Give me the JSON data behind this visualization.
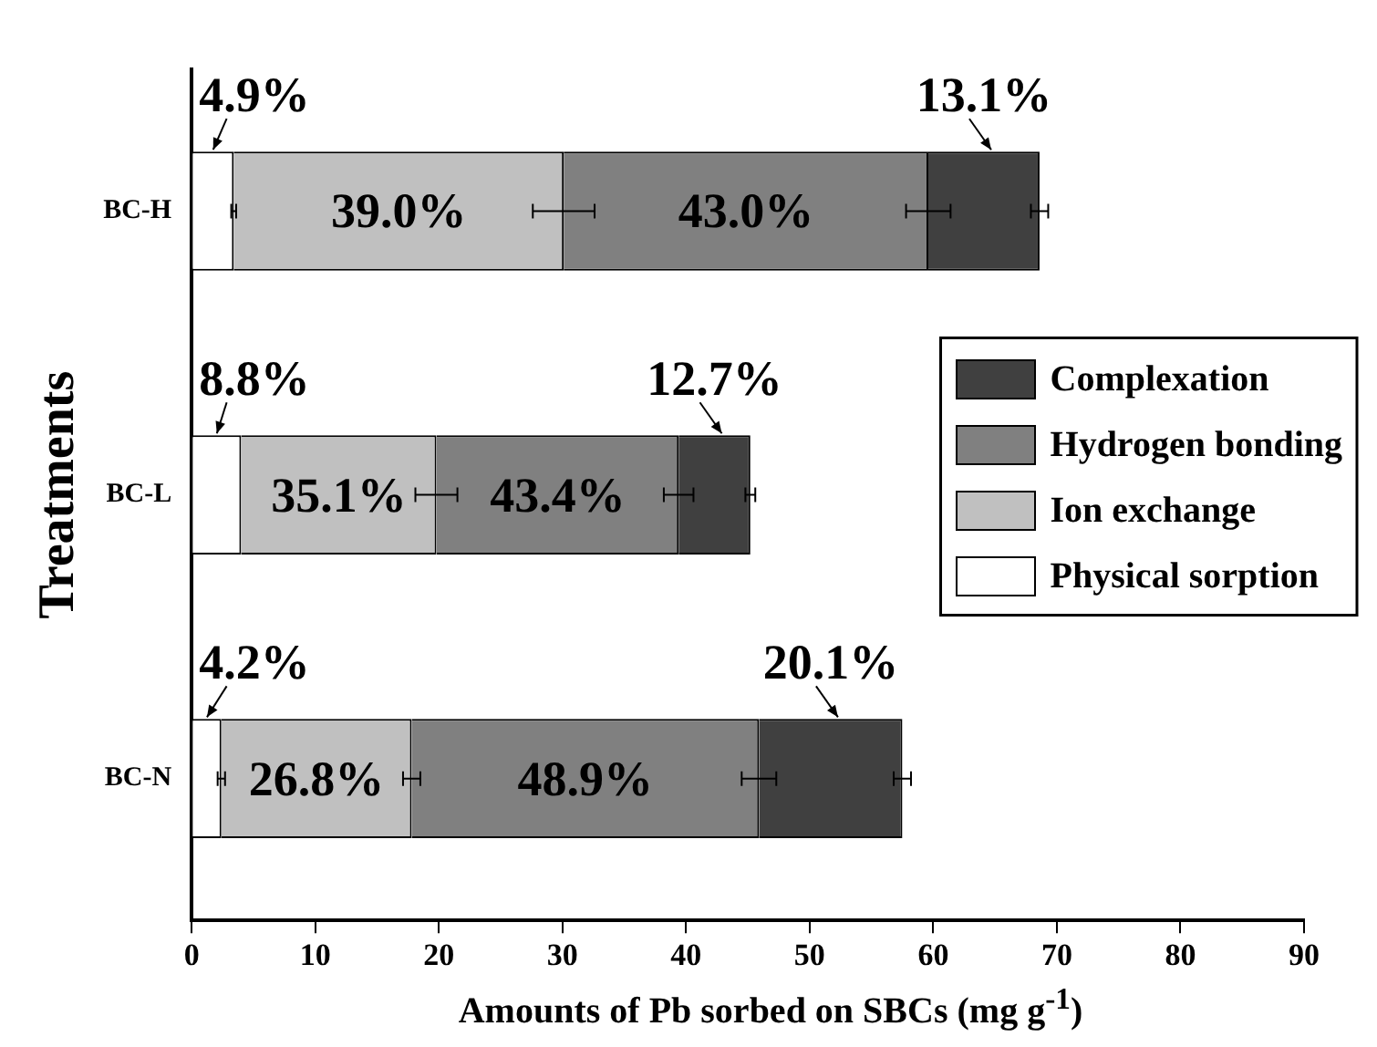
{
  "chart_data": {
    "type": "bar",
    "orientation": "horizontal",
    "stacked": true,
    "categories": [
      "BC-H",
      "BC-L",
      "BC-N"
    ],
    "xlabel": "Amounts of Pb sorbed on SBCs (mg g$^{-1}$)",
    "ylabel": "Treatments",
    "xlim": [
      0,
      90
    ],
    "xticks": [
      0,
      10,
      20,
      30,
      40,
      50,
      60,
      70,
      80,
      90
    ],
    "legend": "right",
    "grid": false,
    "annotations": [
      {
        "text": "4.9%",
        "x": 3.4,
        "y": "BC-H"
      },
      {
        "text": "39.0%",
        "x": 30.1,
        "y": "BC-H"
      },
      {
        "text": "43.0%",
        "x": 59.6,
        "y": "BC-H"
      },
      {
        "text": "13.1%",
        "x": 68.6,
        "y": "BC-H"
      },
      {
        "text": "8.8%",
        "x": 4.0,
        "y": "BC-L"
      },
      {
        "text": "35.1%",
        "x": 19.8,
        "y": "BC-L"
      },
      {
        "text": "43.4%",
        "x": 39.4,
        "y": "BC-L"
      },
      {
        "text": "12.7%",
        "x": 45.2,
        "y": "BC-L"
      },
      {
        "text": "4.2%",
        "x": 2.4,
        "y": "BC-N"
      },
      {
        "text": "26.8%",
        "x": 17.8,
        "y": "BC-N"
      },
      {
        "text": "48.9%",
        "x": 45.9,
        "y": "BC-N"
      },
      {
        "text": "20.1%",
        "x": 57.5,
        "y": "BC-N"
      }
    ],
    "series": [
      {
        "name": "Physical sorption",
        "color": "#ffffff",
        "values": [
          3.4,
          4.0,
          2.4
        ],
        "errors": [
          0.2,
          null,
          0.3
        ]
      },
      {
        "name": "Ion exchange",
        "color": "#c0c0c0",
        "values": [
          26.7,
          15.8,
          15.4
        ],
        "errors": [
          2.5,
          1.7,
          0.7
        ]
      },
      {
        "name": "Hydrogen bonding",
        "color": "#808080",
        "values": [
          29.5,
          19.6,
          28.1
        ],
        "errors": [
          1.8,
          1.2,
          1.4
        ]
      },
      {
        "name": "Complexation",
        "color": "#404040",
        "values": [
          9.0,
          5.8,
          11.6
        ],
        "errors": [
          0.7,
          0.4,
          0.7
        ]
      }
    ]
  }
}
